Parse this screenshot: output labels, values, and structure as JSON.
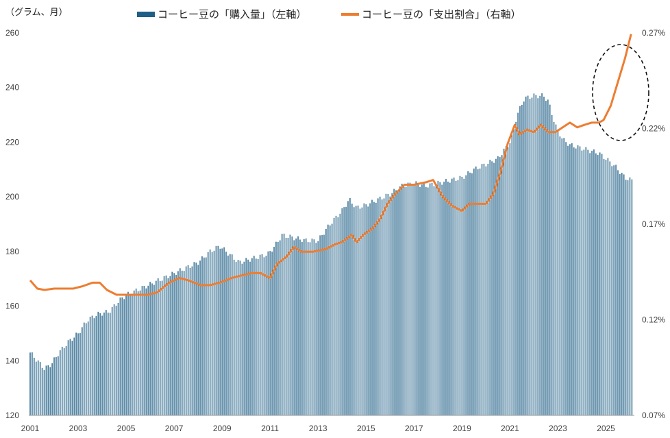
{
  "chart_data": {
    "type": "bar+line",
    "unit_label": "（グラム、月）",
    "x_ticks": [
      "2001",
      "2003",
      "2005",
      "2007",
      "2009",
      "2011",
      "2013",
      "2015",
      "2017",
      "2019",
      "2021",
      "2023",
      "2025"
    ],
    "y_left": {
      "min": 120,
      "max": 260,
      "ticks": [
        "120",
        "140",
        "160",
        "180",
        "200",
        "220",
        "240",
        "260"
      ]
    },
    "y_right": {
      "min": 0.07,
      "max": 0.27,
      "ticks": [
        "0.07%",
        "0.12%",
        "0.17%",
        "0.22%",
        "0.27%"
      ]
    },
    "series": [
      {
        "name": "コーヒー豆の「購入量」（左軸）",
        "type": "bar",
        "axis": "left",
        "color": "#1f5f86",
        "monthly_anchors": [
          [
            2001.0,
            143
          ],
          [
            2001.3,
            140
          ],
          [
            2001.6,
            137
          ],
          [
            2001.9,
            139
          ],
          [
            2002.2,
            143
          ],
          [
            2002.6,
            147
          ],
          [
            2003.0,
            150
          ],
          [
            2003.4,
            155
          ],
          [
            2003.8,
            157
          ],
          [
            2004.3,
            158
          ],
          [
            2004.7,
            162
          ],
          [
            2005.0,
            164
          ],
          [
            2005.5,
            166
          ],
          [
            2006.0,
            168
          ],
          [
            2006.5,
            170
          ],
          [
            2007.0,
            172
          ],
          [
            2007.5,
            174
          ],
          [
            2008.0,
            176
          ],
          [
            2008.5,
            180
          ],
          [
            2008.9,
            182
          ],
          [
            2009.3,
            179
          ],
          [
            2009.7,
            176
          ],
          [
            2010.1,
            177
          ],
          [
            2010.5,
            178
          ],
          [
            2010.9,
            179
          ],
          [
            2011.2,
            182
          ],
          [
            2011.5,
            186
          ],
          [
            2012.0,
            185
          ],
          [
            2012.5,
            184
          ],
          [
            2013.0,
            184
          ],
          [
            2013.5,
            190
          ],
          [
            2014.0,
            195
          ],
          [
            2014.3,
            199
          ],
          [
            2014.6,
            196
          ],
          [
            2015.0,
            197
          ],
          [
            2015.5,
            199
          ],
          [
            2016.0,
            201
          ],
          [
            2016.5,
            204
          ],
          [
            2017.0,
            205
          ],
          [
            2017.5,
            204
          ],
          [
            2018.0,
            205
          ],
          [
            2018.5,
            206
          ],
          [
            2019.0,
            207
          ],
          [
            2019.5,
            210
          ],
          [
            2020.0,
            212
          ],
          [
            2020.5,
            214
          ],
          [
            2021.0,
            220
          ],
          [
            2021.3,
            230
          ],
          [
            2021.6,
            236
          ],
          [
            2022.0,
            237
          ],
          [
            2022.4,
            237
          ],
          [
            2022.6,
            235
          ],
          [
            2022.9,
            226
          ],
          [
            2023.2,
            221
          ],
          [
            2023.5,
            219
          ],
          [
            2023.9,
            218
          ],
          [
            2024.3,
            217
          ],
          [
            2024.7,
            216
          ],
          [
            2025.0,
            214
          ],
          [
            2025.4,
            211
          ],
          [
            2025.8,
            207
          ],
          [
            2026.1,
            206
          ]
        ]
      },
      {
        "name": "コーヒー豆の「支出割合」（右軸）",
        "type": "line",
        "axis": "right",
        "color": "#ed7d31",
        "points": [
          [
            2001.0,
            0.1406
          ],
          [
            2001.3,
            0.1363
          ],
          [
            2001.6,
            0.1356
          ],
          [
            2002.0,
            0.1363
          ],
          [
            2002.4,
            0.1363
          ],
          [
            2002.8,
            0.1363
          ],
          [
            2003.2,
            0.1376
          ],
          [
            2003.6,
            0.1394
          ],
          [
            2003.9,
            0.1394
          ],
          [
            2004.2,
            0.1356
          ],
          [
            2004.6,
            0.1331
          ],
          [
            2005.0,
            0.1331
          ],
          [
            2005.4,
            0.1331
          ],
          [
            2005.9,
            0.1331
          ],
          [
            2006.3,
            0.1344
          ],
          [
            2006.8,
            0.1394
          ],
          [
            2007.2,
            0.1419
          ],
          [
            2007.6,
            0.1406
          ],
          [
            2008.1,
            0.1381
          ],
          [
            2008.5,
            0.1381
          ],
          [
            2008.9,
            0.1394
          ],
          [
            2009.4,
            0.1419
          ],
          [
            2009.8,
            0.1431
          ],
          [
            2010.2,
            0.1444
          ],
          [
            2010.6,
            0.1444
          ],
          [
            2011.0,
            0.1419
          ],
          [
            2011.3,
            0.1494
          ],
          [
            2011.7,
            0.1531
          ],
          [
            2012.0,
            0.1581
          ],
          [
            2012.3,
            0.1556
          ],
          [
            2012.8,
            0.1556
          ],
          [
            2013.3,
            0.1569
          ],
          [
            2013.7,
            0.1594
          ],
          [
            2014.0,
            0.1606
          ],
          [
            2014.4,
            0.1644
          ],
          [
            2014.6,
            0.1606
          ],
          [
            2014.9,
            0.1644
          ],
          [
            2015.3,
            0.1681
          ],
          [
            2015.6,
            0.1731
          ],
          [
            2015.9,
            0.1806
          ],
          [
            2016.2,
            0.1856
          ],
          [
            2016.6,
            0.1906
          ],
          [
            2017.0,
            0.1906
          ],
          [
            2017.5,
            0.1919
          ],
          [
            2017.8,
            0.1931
          ],
          [
            2018.2,
            0.1844
          ],
          [
            2018.6,
            0.1794
          ],
          [
            2019.0,
            0.1769
          ],
          [
            2019.3,
            0.1806
          ],
          [
            2019.7,
            0.1806
          ],
          [
            2020.0,
            0.1806
          ],
          [
            2020.3,
            0.1856
          ],
          [
            2020.6,
            0.1969
          ],
          [
            2020.9,
            0.2119
          ],
          [
            2021.2,
            0.2219
          ],
          [
            2021.4,
            0.2169
          ],
          [
            2021.7,
            0.2194
          ],
          [
            2022.0,
            0.2181
          ],
          [
            2022.3,
            0.2219
          ],
          [
            2022.6,
            0.2181
          ],
          [
            2022.9,
            0.2181
          ],
          [
            2023.2,
            0.2206
          ],
          [
            2023.5,
            0.2231
          ],
          [
            2023.8,
            0.2206
          ],
          [
            2024.1,
            0.2219
          ],
          [
            2024.4,
            0.2231
          ],
          [
            2024.7,
            0.2231
          ],
          [
            2024.9,
            0.2244
          ],
          [
            2025.2,
            0.2319
          ],
          [
            2025.5,
            0.2444
          ],
          [
            2025.8,
            0.2569
          ],
          [
            2026.05,
            0.2694
          ]
        ]
      }
    ]
  }
}
